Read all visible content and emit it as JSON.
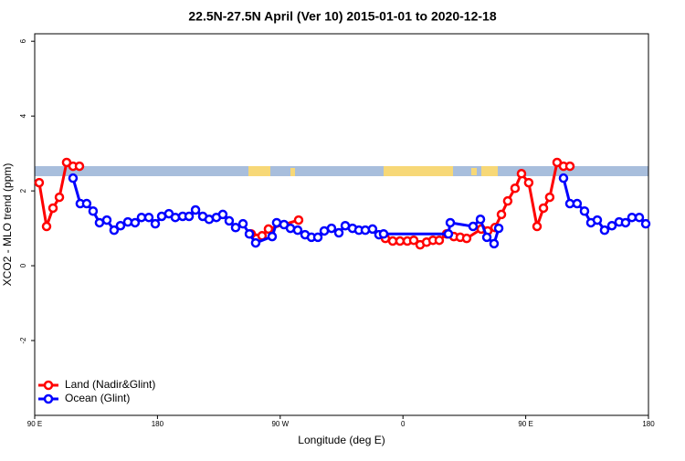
{
  "chart_data": {
    "type": "line",
    "title": "22.5N-27.5N April (Ver 10)   2015-01-01 to 2020-12-18",
    "x_label": "Longitude (deg E)",
    "y_label": "XCO2 - MLO trend (ppm)",
    "xlim": [
      90,
      540
    ],
    "xticks": [
      {
        "value": 90,
        "label": "90 E"
      },
      180,
      {
        "value": 270,
        "label": "90 W"
      },
      {
        "value": 360,
        "label": "0"
      },
      {
        "value": 450,
        "label": "90 E"
      },
      {
        "value": 540,
        "label": "180"
      }
    ],
    "ylim": [
      -4,
      6.2
    ],
    "yticks": [
      -2,
      0,
      2,
      4,
      6
    ],
    "legend": "bottom-left",
    "series": [
      {
        "name": "Land (Nadir&Glint)",
        "color": "#ff0000",
        "x": [
          93.3,
          98.7,
          103.4,
          108.1,
          113.4,
          118.1,
          122.8,
          185,
          248.7,
          256.7,
          261.4,
          283.5,
          315,
          347.1,
          352.5,
          357.8,
          363.2,
          367.9,
          372.6,
          377.3,
          382.0,
          386.6,
          392.0,
          397.3,
          402.0,
          406.7,
          417.4,
          422.1,
          427.5,
          432.2,
          436.8,
          442.2,
          446.9,
          452.2,
          458.3,
          463.0,
          467.6,
          473.0,
          477.7,
          482.4
        ],
        "values": [
          2.22,
          1.05,
          1.54,
          1.83,
          2.76,
          2.66,
          2.66,
          null,
          0.85,
          0.8,
          0.98,
          1.22,
          null,
          0.73,
          0.66,
          0.66,
          0.66,
          0.68,
          0.56,
          0.63,
          0.68,
          0.68,
          0.85,
          0.78,
          0.76,
          0.73,
          0.98,
          0.93,
          1.02,
          1.37,
          1.73,
          2.07,
          2.46,
          2.22,
          1.05,
          1.54,
          1.83,
          2.76,
          2.66,
          2.66
        ]
      },
      {
        "name": "Ocean (Glint)",
        "color": "#0000ff",
        "x": [
          118.1,
          123.4,
          128.1,
          132.8,
          137.5,
          142.9,
          148.2,
          152.9,
          158.3,
          163.6,
          168.3,
          173.7,
          178.4,
          183.1,
          188.4,
          193.1,
          198.5,
          203.2,
          207.9,
          213.2,
          217.9,
          223.2,
          227.9,
          232.6,
          237.3,
          242.7,
          247.4,
          252.0,
          264.1,
          267.4,
          272.8,
          277.5,
          282.8,
          288.2,
          292.9,
          297.6,
          302.3,
          307.6,
          313.0,
          317.7,
          323.0,
          327.7,
          332.4,
          337.7,
          342.4,
          345.8,
          393.3,
          394.7,
          411.4,
          416.8,
          421.5,
          426.8,
          430.2,
          454,
          477.7,
          482.4,
          487.7,
          493.1,
          497.8,
          502.5,
          507.8,
          513.2,
          518.5,
          523.2,
          527.9,
          533.3,
          538.0
        ],
        "values": [
          2.34,
          1.66,
          1.66,
          1.46,
          1.15,
          1.22,
          0.95,
          1.07,
          1.17,
          1.15,
          1.29,
          1.29,
          1.12,
          1.32,
          1.39,
          1.29,
          1.32,
          1.32,
          1.49,
          1.32,
          1.24,
          1.29,
          1.37,
          1.2,
          1.02,
          1.12,
          0.85,
          0.61,
          0.78,
          1.15,
          1.1,
          1.0,
          0.95,
          0.83,
          0.76,
          0.76,
          0.93,
          1.0,
          0.88,
          1.07,
          1.0,
          0.95,
          0.95,
          0.98,
          0.83,
          0.85,
          0.85,
          1.15,
          1.05,
          1.24,
          0.76,
          0.59,
          1.0,
          null,
          2.34,
          1.66,
          1.66,
          1.46,
          1.15,
          1.22,
          0.95,
          1.07,
          1.17,
          1.15,
          1.29,
          1.29,
          1.12
        ]
      }
    ]
  }
}
